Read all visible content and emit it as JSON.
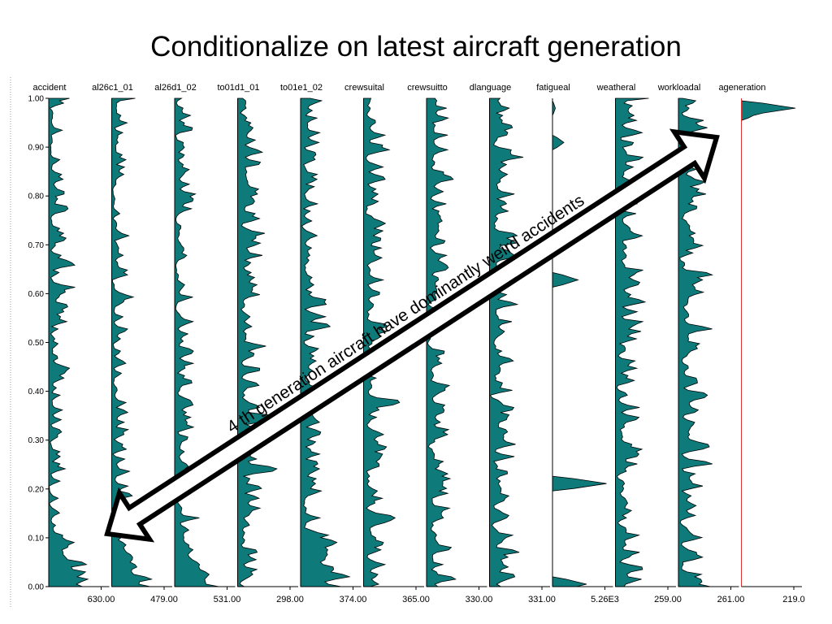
{
  "title": "Conditionalize on latest aircraft generation",
  "chart_data": {
    "type": "area",
    "y_ticks": [
      "1.00",
      "0.90",
      "0.80",
      "0.70",
      "0.60",
      "0.50",
      "0.40",
      "0.30",
      "0.20",
      "0.10",
      "0.00"
    ],
    "ylim": [
      0,
      1
    ],
    "fill_color": "#0f7a7a",
    "selected_line_color": "#e03030",
    "annotation": "4 th generation aircraft have dominantly weird accidents",
    "series": [
      {
        "name": "accident",
        "max_label": "630.00",
        "seed": 3,
        "density": 0.35,
        "bottom_heavy": true
      },
      {
        "name": "al26c1_01",
        "max_label": "479.00",
        "seed": 7,
        "density": 0.45,
        "bottom_heavy": true
      },
      {
        "name": "al26d1_02",
        "max_label": "531.00",
        "seed": 11,
        "density": 0.5,
        "bottom_heavy": true
      },
      {
        "name": "to01d1_01",
        "max_label": "298.00",
        "seed": 13,
        "density": 0.8,
        "bottom_heavy": false
      },
      {
        "name": "to01e1_02",
        "max_label": "374.00",
        "seed": 17,
        "density": 0.7,
        "bottom_heavy": true
      },
      {
        "name": "crewsuital",
        "max_label": "365.00",
        "seed": 19,
        "density": 0.75,
        "bottom_heavy": false
      },
      {
        "name": "crewsuitto",
        "max_label": "330.00",
        "seed": 23,
        "density": 0.85,
        "bottom_heavy": false
      },
      {
        "name": "dlanguage",
        "max_label": "331.00",
        "seed": 29,
        "density": 0.85,
        "bottom_heavy": false
      },
      {
        "name": "fatigueal",
        "max_label": "5.26E3",
        "seed": 31,
        "density": 0.0,
        "bottom_heavy": false,
        "spikes": [
          [
            0.21,
            0.95
          ],
          [
            0.63,
            0.45
          ],
          [
            0.91,
            0.2
          ],
          [
            0.98,
            0.05
          ],
          [
            0.005,
            0.6
          ]
        ]
      },
      {
        "name": "weatheral",
        "max_label": "259.00",
        "seed": 37,
        "density": 0.95,
        "bottom_heavy": false
      },
      {
        "name": "workloadal",
        "max_label": "261.00",
        "seed": 41,
        "density": 0.95,
        "bottom_heavy": false
      },
      {
        "name": "ageneration",
        "max_label": "219.0",
        "seed": 43,
        "density": 0.0,
        "bottom_heavy": false,
        "selected": true,
        "spikes": [
          [
            0.98,
            0.95
          ],
          [
            0.97,
            0.3
          ]
        ]
      }
    ]
  }
}
